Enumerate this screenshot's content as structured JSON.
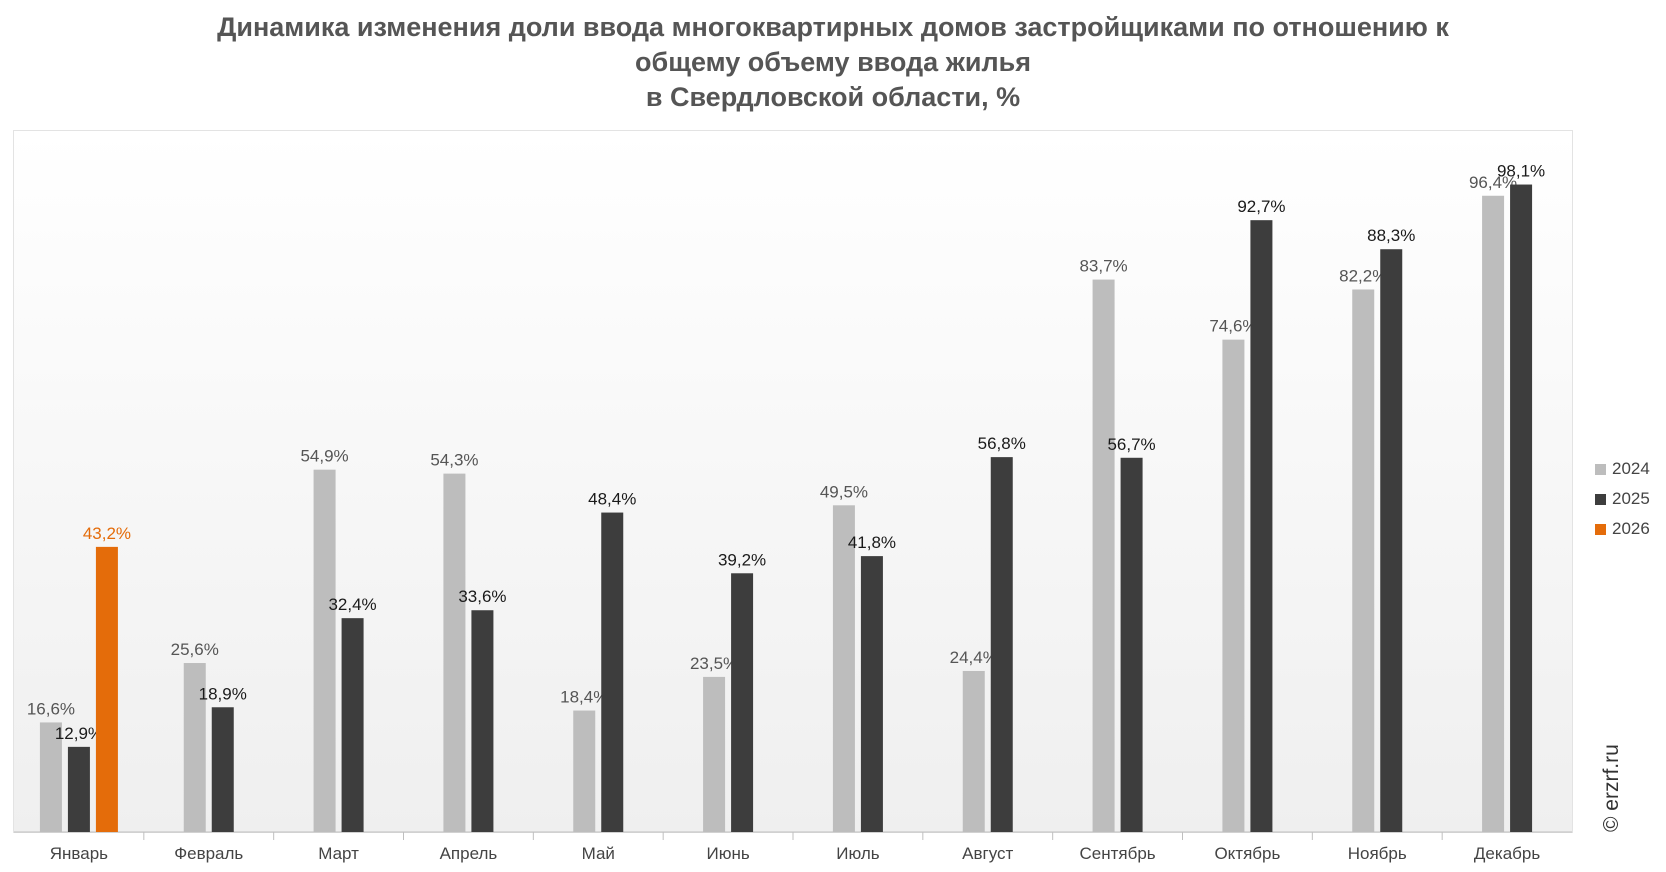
{
  "title": {
    "line1": "Динамика изменения доли ввода многоквартирных домов застройщиками по отношению к",
    "line2": "общему объему ввода жилья",
    "line3": "в Свердловской области, %"
  },
  "watermark": "© erzrf.ru",
  "chart_data": {
    "type": "bar",
    "title": "Динамика изменения доли ввода многоквартирных домов застройщиками по отношению к общему объему ввода жилья в Свердловской области, %",
    "categories": [
      "Январь",
      "Февраль",
      "Март",
      "Апрель",
      "Май",
      "Июнь",
      "Июль",
      "Август",
      "Сентябрь",
      "Октябрь",
      "Ноябрь",
      "Декабрь"
    ],
    "series": [
      {
        "name": "2024",
        "color": "#bdbdbd",
        "label_color": "#555555",
        "values": [
          16.6,
          25.6,
          54.9,
          54.3,
          18.4,
          23.5,
          49.5,
          24.4,
          83.7,
          74.6,
          82.2,
          96.4
        ],
        "labels": [
          "16,6%",
          "25,6%",
          "54,9%",
          "54,3%",
          "18,4%",
          "23,5%",
          "49,5%",
          "24,4%",
          "83,7%",
          "74,6%",
          "82,2%",
          "96,4%"
        ]
      },
      {
        "name": "2025",
        "color": "#3d3d3d",
        "label_color": "#1a1a1a",
        "values": [
          12.9,
          18.9,
          32.4,
          33.6,
          48.4,
          39.2,
          41.8,
          56.8,
          56.7,
          92.7,
          88.3,
          98.1
        ],
        "labels": [
          "12,9%",
          "18,9%",
          "32,4%",
          "33,6%",
          "48,4%",
          "39,2%",
          "41,8%",
          "56,8%",
          "56,7%",
          "92,7%",
          "88,3%",
          "98,1%"
        ]
      },
      {
        "name": "2026",
        "color": "#e46c0a",
        "label_color": "#e46c0a",
        "values": [
          43.2,
          null,
          null,
          null,
          null,
          null,
          null,
          null,
          null,
          null,
          null,
          null
        ],
        "labels": [
          "43,2%",
          "",
          "",
          "",
          "",
          "",
          "",
          "",
          "",
          "",
          "",
          ""
        ]
      }
    ],
    "ylim": [
      0,
      100
    ],
    "grid": false,
    "legend_position": "right"
  }
}
